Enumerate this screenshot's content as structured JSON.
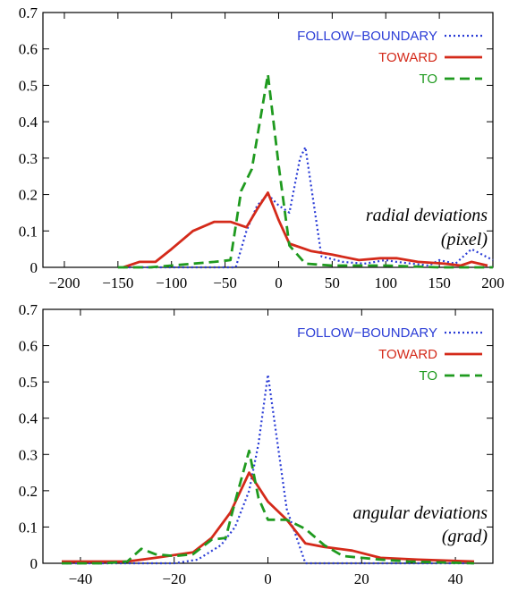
{
  "colors": {
    "follow_boundary": "#2a3cd6",
    "toward": "#d42a1a",
    "to": "#1f9a1f"
  },
  "chart_data": [
    {
      "type": "line",
      "annotation": [
        "radial deviations",
        "(pixel)"
      ],
      "xlim": [
        -220,
        200
      ],
      "ylim": [
        0,
        0.7
      ],
      "xticks": [
        -200,
        -150,
        -100,
        -50,
        0,
        50,
        100,
        150,
        200
      ],
      "xtick_labels": [
        "−200",
        "−150",
        "−100",
        "−50",
        "0",
        "50",
        "100",
        "150",
        "200"
      ],
      "yticks": [
        0,
        0.1,
        0.2,
        0.3,
        0.4,
        0.5,
        0.6,
        0.7
      ],
      "ytick_labels": [
        "0",
        "0.1",
        "0.2",
        "0.3",
        "0.4",
        "0.5",
        "0.6",
        "0.7"
      ],
      "legend": "top-right",
      "series": [
        {
          "name": "FOLLOW−BOUNDARY",
          "style": "dotted",
          "x": [
            -140,
            -120,
            -100,
            -80,
            -60,
            -40,
            -30,
            -20,
            -10,
            0,
            10,
            20,
            25,
            40,
            60,
            80,
            100,
            110,
            125,
            140,
            150,
            165,
            180,
            200
          ],
          "y": [
            0,
            0,
            0,
            0,
            0,
            0,
            0.1,
            0.17,
            0.2,
            0.17,
            0.15,
            0.3,
            0.33,
            0.03,
            0.015,
            0.01,
            0.02,
            0.015,
            0.01,
            0.005,
            0.02,
            0.01,
            0.05,
            0.02
          ]
        },
        {
          "name": "TOWARD",
          "style": "solid",
          "x": [
            -145,
            -130,
            -115,
            -100,
            -80,
            -60,
            -45,
            -30,
            -20,
            -10,
            0,
            10,
            30,
            50,
            75,
            95,
            110,
            130,
            155,
            170,
            180,
            195
          ],
          "y": [
            0,
            0.015,
            0.015,
            0.05,
            0.1,
            0.125,
            0.125,
            0.11,
            0.16,
            0.205,
            0.13,
            0.065,
            0.045,
            0.035,
            0.02,
            0.025,
            0.025,
            0.015,
            0.01,
            0.005,
            0.015,
            0.005
          ]
        },
        {
          "name": "TO",
          "style": "dashed",
          "x": [
            -150,
            -120,
            -100,
            -80,
            -60,
            -45,
            -35,
            -25,
            -10,
            0,
            10,
            25,
            50,
            100,
            150,
            200
          ],
          "y": [
            0,
            0,
            0.005,
            0.01,
            0.015,
            0.02,
            0.21,
            0.27,
            0.53,
            0.28,
            0.06,
            0.01,
            0.005,
            0.005,
            0,
            0
          ]
        }
      ]
    },
    {
      "type": "line",
      "annotation": [
        "angular deviations",
        "(grad)"
      ],
      "xlim": [
        -48,
        48
      ],
      "ylim": [
        0,
        0.7
      ],
      "xticks": [
        -40,
        -20,
        0,
        20,
        40
      ],
      "xtick_labels": [
        "−40",
        "−20",
        "0",
        "20",
        "40"
      ],
      "yticks": [
        0,
        0.1,
        0.2,
        0.3,
        0.4,
        0.5,
        0.6,
        0.7
      ],
      "ytick_labels": [
        "0",
        "0.1",
        "0.2",
        "0.3",
        "0.4",
        "0.5",
        "0.6",
        "0.7"
      ],
      "legend": "top-right",
      "series": [
        {
          "name": "FOLLOW−BOUNDARY",
          "style": "dotted",
          "x": [
            -44,
            -30,
            -20,
            -15,
            -10,
            -7,
            -4,
            -2,
            0,
            4,
            8,
            20,
            44
          ],
          "y": [
            0,
            0,
            0,
            0.01,
            0.05,
            0.1,
            0.2,
            0.33,
            0.52,
            0.15,
            0,
            0,
            0
          ]
        },
        {
          "name": "TOWARD",
          "style": "solid",
          "x": [
            -44,
            -36,
            -30,
            -24,
            -16,
            -12,
            -8,
            -4,
            0,
            4,
            8,
            12,
            18,
            24,
            32,
            44
          ],
          "y": [
            0.005,
            0.005,
            0.005,
            0.015,
            0.03,
            0.07,
            0.14,
            0.25,
            0.17,
            0.12,
            0.055,
            0.045,
            0.035,
            0.015,
            0.01,
            0.005
          ]
        },
        {
          "name": "TO",
          "style": "dashed",
          "x": [
            -44,
            -35,
            -30,
            -27,
            -24,
            -20,
            -16,
            -12,
            -9,
            -7,
            -4,
            -2,
            0,
            4,
            8,
            12,
            16,
            20,
            24,
            30,
            44
          ],
          "y": [
            0,
            0,
            0.005,
            0.04,
            0.025,
            0.02,
            0.025,
            0.065,
            0.07,
            0.17,
            0.31,
            0.18,
            0.12,
            0.12,
            0.095,
            0.05,
            0.02,
            0.015,
            0.01,
            0.005,
            0
          ]
        }
      ]
    }
  ]
}
